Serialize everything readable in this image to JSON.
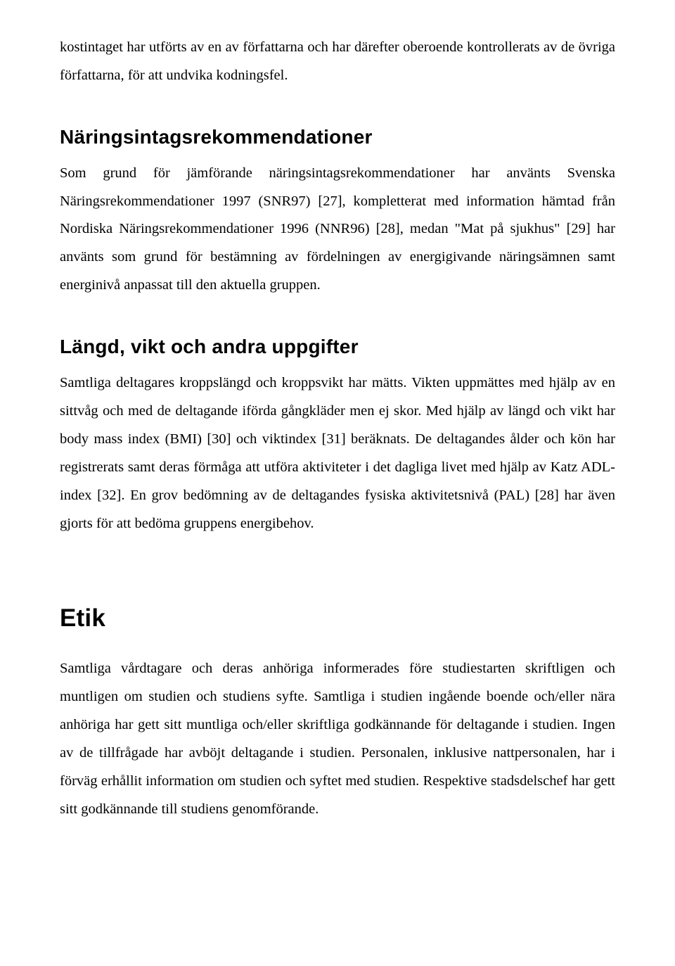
{
  "intro_cont": "kostintaget har utförts av en av författarna och har därefter oberoende kontrollerats av de övriga författarna, för att undvika kodningsfel.",
  "sec1": {
    "title": "Näringsintagsrekommendationer",
    "body": "Som grund för jämförande näringsintagsrekommendationer har använts Svenska Näringsrekommendationer 1997 (SNR97) [27], kompletterat med information hämtad från Nordiska Näringsrekommendationer 1996 (NNR96) [28], medan \"Mat på sjukhus\" [29] har använts som grund för bestämning av fördelningen av energigivande näringsämnen samt energinivå anpassat till den aktuella gruppen."
  },
  "sec2": {
    "title": "Längd, vikt och andra uppgifter",
    "body": "Samtliga deltagares kroppslängd och kroppsvikt har mätts. Vikten uppmättes med hjälp av en sittvåg och med de deltagande iförda gångkläder men ej skor. Med hjälp av längd och vikt har body mass index (BMI) [30] och viktindex [31] beräknats. De deltagandes ålder och kön har registrerats samt deras förmåga att utföra aktiviteter i det dagliga livet med hjälp av Katz ADL-index [32]. En grov bedömning av de deltagandes fysiska aktivitetsnivå (PAL) [28] har även gjorts för att bedöma gruppens energibehov."
  },
  "sec3": {
    "title": "Etik",
    "body": "Samtliga vårdtagare och deras anhöriga informerades före studiestarten skriftligen och muntligen om studien och studiens syfte. Samtliga i studien ingående boende och/eller nära anhöriga har gett sitt muntliga och/eller skriftliga godkännande för deltagande i studien. Ingen av de tillfrågade har avböjt deltagande i studien. Personalen, inklusive nattpersonalen, har i förväg erhållit information om studien och syftet med studien. Respektive stadsdelschef har gett sitt godkännande till studiens genomförande."
  }
}
